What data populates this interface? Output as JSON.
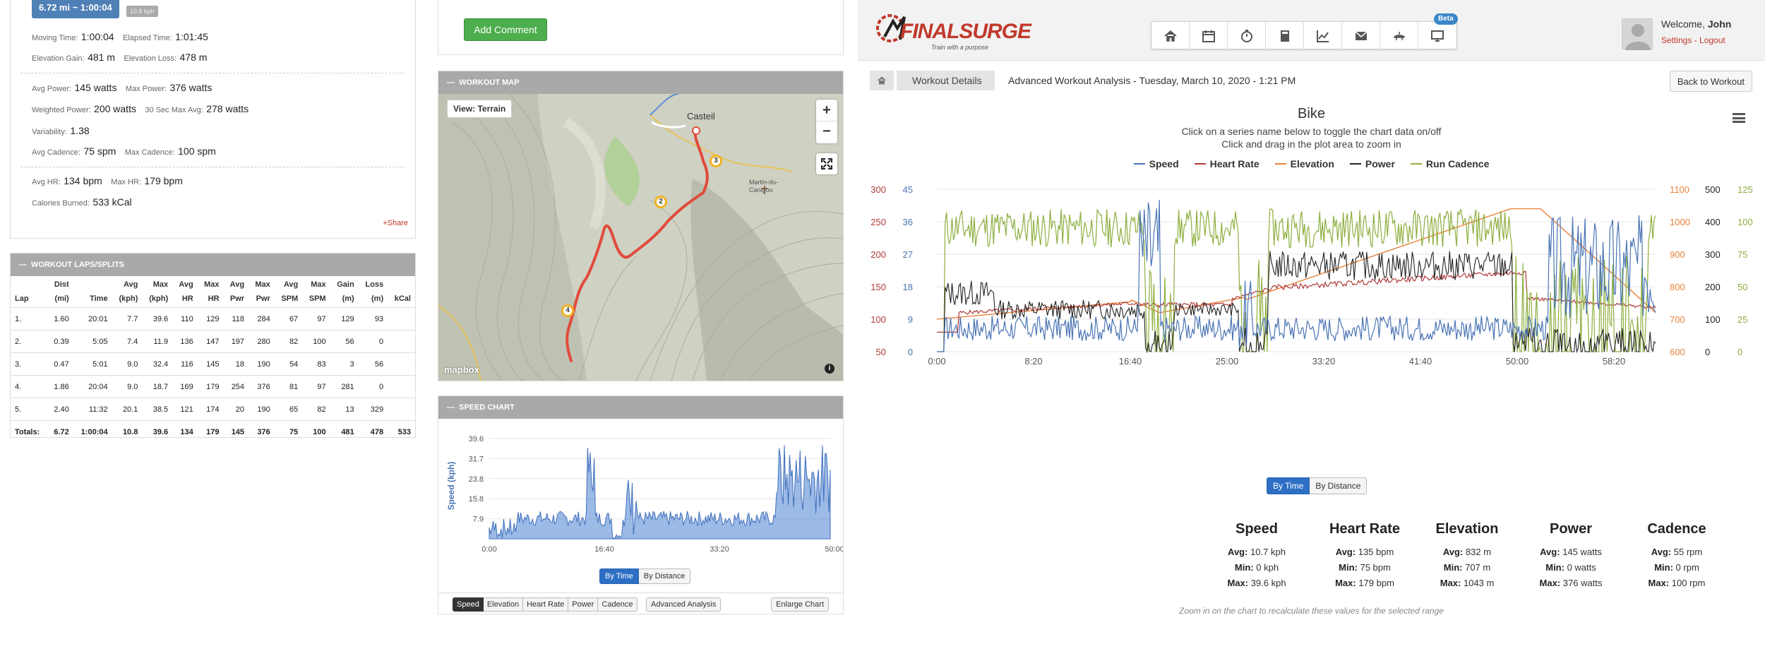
{
  "summary": {
    "distance_badge": "6.72 mi ~ 1:00:04",
    "pace_badge": "10.8 kph",
    "moving_time_label": "Moving Time:",
    "moving_time": "1:00:04",
    "elapsed_time_label": "Elapsed Time:",
    "elapsed_time": "1:01:45",
    "elev_gain_label": "Elevation Gain:",
    "elev_gain": "481 m",
    "elev_loss_label": "Elevation Loss:",
    "elev_loss": "478 m",
    "avg_power_label": "Avg Power:",
    "avg_power": "145 watts",
    "max_power_label": "Max Power:",
    "max_power": "376 watts",
    "weighted_power_label": "Weighted Power:",
    "weighted_power": "200 watts",
    "sec30_label": "30 Sec Max Avg:",
    "sec30": "278 watts",
    "variability_label": "Variability:",
    "variability": "1.38",
    "avg_cadence_label": "Avg Cadence:",
    "avg_cadence": "75 spm",
    "max_cadence_label": "Max Cadence:",
    "max_cadence": "100 spm",
    "avg_hr_label": "Avg HR:",
    "avg_hr": "134 bpm",
    "max_hr_label": "Max HR:",
    "max_hr": "179 bpm",
    "calories_label": "Calories Burned:",
    "calories": "533 kCal",
    "share": "+Share"
  },
  "laps": {
    "title": "WORKOUT LAPS/SPLITS",
    "headers": [
      [
        "",
        "Lap"
      ],
      [
        "Dist",
        "(mi)"
      ],
      [
        "",
        "Time"
      ],
      [
        "Avg",
        "(kph)"
      ],
      [
        "Max",
        "(kph)"
      ],
      [
        "Avg",
        "HR"
      ],
      [
        "Max",
        "HR"
      ],
      [
        "Avg",
        "Pwr"
      ],
      [
        "Max",
        "Pwr"
      ],
      [
        "Avg",
        "SPM"
      ],
      [
        "Max",
        "SPM"
      ],
      [
        "Gain",
        "(m)"
      ],
      [
        "Loss",
        "(m)"
      ],
      [
        "",
        "kCal"
      ]
    ],
    "rows": [
      [
        "1.",
        "1.60",
        "20:01",
        "7.7",
        "39.6",
        "110",
        "129",
        "118",
        "284",
        "67",
        "97",
        "129",
        "93",
        ""
      ],
      [
        "2.",
        "0.39",
        "5:05",
        "7.4",
        "11.9",
        "136",
        "147",
        "197",
        "280",
        "82",
        "100",
        "56",
        "0",
        ""
      ],
      [
        "3.",
        "0.47",
        "5:01",
        "9.0",
        "32.4",
        "116",
        "145",
        "18",
        "190",
        "54",
        "83",
        "3",
        "56",
        ""
      ],
      [
        "4.",
        "1.86",
        "20:04",
        "9.0",
        "18.7",
        "169",
        "179",
        "254",
        "376",
        "81",
        "97",
        "281",
        "0",
        ""
      ],
      [
        "5.",
        "2.40",
        "11:32",
        "20.1",
        "38.5",
        "121",
        "174",
        "20",
        "190",
        "65",
        "82",
        "13",
        "329",
        ""
      ]
    ],
    "totals": [
      "Totals:",
      "6.72",
      "1:00:04",
      "10.8",
      "39.6",
      "134",
      "179",
      "145",
      "376",
      "75",
      "100",
      "481",
      "478",
      "533"
    ]
  },
  "comment": {
    "add_button": "Add Comment"
  },
  "map": {
    "title": "WORKOUT MAP",
    "view_button": "View: Terrain",
    "zoom_in": "+",
    "zoom_out": "−",
    "town": "Casteil",
    "landmark": "Martin-du-Canigou",
    "markers": [
      "2",
      "3",
      "4"
    ],
    "attribution": "mapbox",
    "info": "i"
  },
  "speed_chart": {
    "title": "SPEED CHART",
    "ylabel": "Speed (kph)",
    "yticks": [
      "39.6",
      "31.7",
      "23.8",
      "15.8",
      "7.9"
    ],
    "xticks": [
      "0:00",
      "16:40",
      "33:20",
      "50:00"
    ],
    "by_time": "By Time",
    "by_distance": "By Distance",
    "tabs": [
      "Speed",
      "Elevation",
      "Heart Rate",
      "Power",
      "Cadence"
    ],
    "advanced": "Advanced Analysis",
    "enlarge": "Enlarge Chart"
  },
  "app": {
    "logo": "FINALSURGE",
    "tagline": "Train with a purpose",
    "beta": "Beta",
    "welcome_prefix": "Welcome,",
    "user": "John",
    "settings": "Settings",
    "sep": " - ",
    "logout": "Logout",
    "nav_icons": [
      "home-icon",
      "calendar-icon",
      "stopwatch-icon",
      "calculator-icon",
      "chart-icon",
      "mail-icon",
      "bike-icon",
      "monitor-icon"
    ]
  },
  "breadcrumb": {
    "crumb": "Workout Details",
    "title": "Advanced Workout Analysis - Tuesday, March 10, 2020 - 1:21 PM",
    "back": "Back to Workout"
  },
  "main_chart": {
    "title": "Bike",
    "subtitle1": "Click on a series name below to toggle the chart data on/off",
    "subtitle2": "Click and drag in the plot area to zoom in",
    "legend": [
      {
        "name": "Speed",
        "color": "#4a74b5"
      },
      {
        "name": "Heart Rate",
        "color": "#b03a3a"
      },
      {
        "name": "Elevation",
        "color": "#e8823a"
      },
      {
        "name": "Power",
        "color": "#222222"
      },
      {
        "name": "Run Cadence",
        "color": "#8daf3f"
      }
    ],
    "hr_ticks": [
      "300",
      "250",
      "200",
      "150",
      "100",
      "50"
    ],
    "speed_ticks": [
      "45",
      "36",
      "27",
      "18",
      "9",
      "0"
    ],
    "elev_ticks": [
      "1100",
      "1000",
      "900",
      "800",
      "700",
      "600"
    ],
    "power_ticks": [
      "500",
      "400",
      "300",
      "200",
      "100",
      "0"
    ],
    "cad_ticks": [
      "125",
      "100",
      "75",
      "50",
      "25",
      "0"
    ],
    "xticks": [
      "0:00",
      "8:20",
      "16:40",
      "25:00",
      "33:20",
      "41:40",
      "50:00",
      "58:20"
    ],
    "by_time": "By Time",
    "by_distance": "By Distance"
  },
  "stats": [
    {
      "title": "Speed",
      "avg": "10.7 kph",
      "min": "0 kph",
      "max": "39.6 kph"
    },
    {
      "title": "Heart Rate",
      "avg": "135 bpm",
      "min": "75 bpm",
      "max": "179 bpm"
    },
    {
      "title": "Elevation",
      "avg": "832 m",
      "min": "707 m",
      "max": "1043 m"
    },
    {
      "title": "Power",
      "avg": "145 watts",
      "min": "0 watts",
      "max": "376 watts"
    },
    {
      "title": "Cadence",
      "avg": "55 rpm",
      "min": "0 rpm",
      "max": "100 rpm"
    }
  ],
  "stat_labels": {
    "avg": "Avg:",
    "min": "Min:",
    "max": "Max:"
  },
  "zoom_note": "Zoom in on the chart to recalculate these values for the selected range"
}
